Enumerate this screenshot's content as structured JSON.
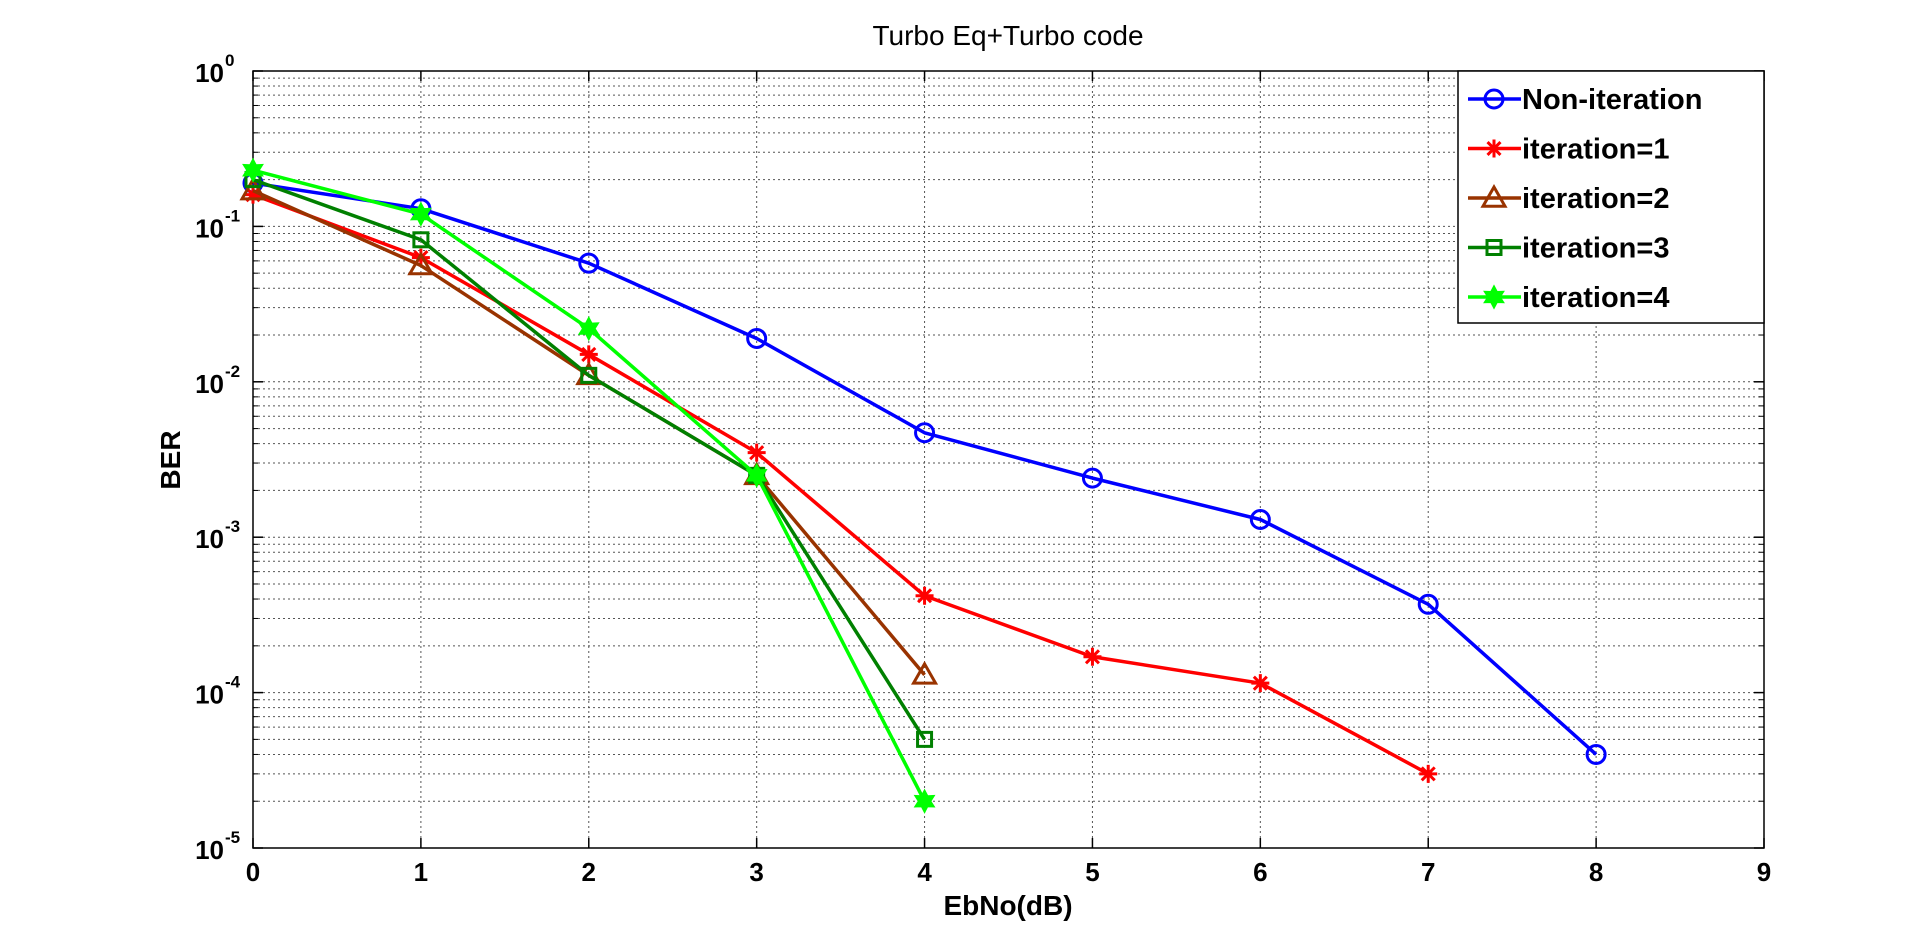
{
  "chart_data": {
    "type": "line",
    "title": "Turbo Eq+Turbo code",
    "xlabel": "EbNo(dB)",
    "ylabel": "BER",
    "xlim": [
      0,
      9
    ],
    "ylim": [
      1e-05,
      1
    ],
    "yscale": "log",
    "grid": true,
    "legend_position": "top-right",
    "x_ticks": [
      "0",
      "1",
      "2",
      "3",
      "4",
      "5",
      "6",
      "7",
      "8",
      "9"
    ],
    "y_ticks": [
      {
        "base": "10",
        "exp": "0"
      },
      {
        "base": "10",
        "exp": "-1"
      },
      {
        "base": "10",
        "exp": "-2"
      },
      {
        "base": "10",
        "exp": "-3"
      },
      {
        "base": "10",
        "exp": "-4"
      },
      {
        "base": "10",
        "exp": "-5"
      }
    ],
    "series": [
      {
        "name": "Non-iteration",
        "color": "#0000ff",
        "marker": "circle",
        "x": [
          0,
          1,
          2,
          3,
          4,
          5,
          6,
          7,
          8
        ],
        "y": [
          0.19,
          0.13,
          0.058,
          0.019,
          0.0047,
          0.0024,
          0.0013,
          0.00037,
          4e-05
        ]
      },
      {
        "name": "iteration=1",
        "color": "#ff0000",
        "marker": "star",
        "x": [
          0,
          1,
          2,
          3,
          4,
          5,
          6,
          7
        ],
        "y": [
          0.16,
          0.063,
          0.015,
          0.0035,
          0.00042,
          0.00017,
          0.000115,
          3e-05
        ]
      },
      {
        "name": "iteration=2",
        "color": "#993300",
        "marker": "triangle",
        "x": [
          0,
          1,
          2,
          3,
          4
        ],
        "y": [
          0.17,
          0.056,
          0.011,
          0.0025,
          0.00013
        ]
      },
      {
        "name": "iteration=3",
        "color": "#008000",
        "marker": "square",
        "x": [
          0,
          1,
          2,
          3,
          4
        ],
        "y": [
          0.2,
          0.082,
          0.011,
          0.0025,
          5e-05
        ]
      },
      {
        "name": "iteration=4",
        "color": "#00ff00",
        "marker": "hexagram",
        "x": [
          0,
          1,
          2,
          3,
          4
        ],
        "y": [
          0.23,
          0.12,
          0.022,
          0.0025,
          2e-05
        ]
      }
    ]
  }
}
